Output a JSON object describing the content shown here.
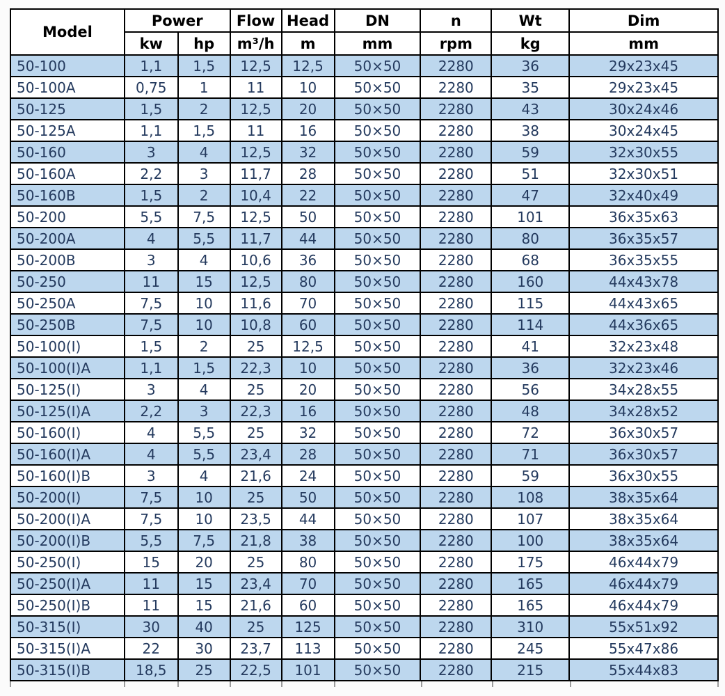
{
  "table": {
    "header": {
      "model": "Model",
      "power": "Power",
      "kw": "kw",
      "hp": "hp",
      "flow": "Flow",
      "flow_unit": "m³/h",
      "head": "Head",
      "head_unit": "m",
      "dn": "DN",
      "dn_unit": "mm",
      "n": "n",
      "n_unit": "rpm",
      "wt": "Wt",
      "wt_unit": "kg",
      "dim": "Dim",
      "dim_unit": "mm"
    },
    "column_keys": [
      "model",
      "kw",
      "hp",
      "flow",
      "head",
      "dn",
      "n",
      "wt",
      "dim"
    ],
    "rows": [
      [
        "50-100",
        "1,1",
        "1,5",
        "12,5",
        "12,5",
        "50×50",
        "2280",
        "36",
        "29x23x45"
      ],
      [
        "50-100A",
        "0,75",
        "1",
        "11",
        "10",
        "50×50",
        "2280",
        "35",
        "29x23x45"
      ],
      [
        "50-125",
        "1,5",
        "2",
        "12,5",
        "20",
        "50×50",
        "2280",
        "43",
        "30x24x46"
      ],
      [
        "50-125A",
        "1,1",
        "1,5",
        "11",
        "16",
        "50×50",
        "2280",
        "38",
        "30x24x45"
      ],
      [
        "50-160",
        "3",
        "4",
        "12,5",
        "32",
        "50×50",
        "2280",
        "59",
        "32x30x55"
      ],
      [
        "50-160A",
        "2,2",
        "3",
        "11,7",
        "28",
        "50×50",
        "2280",
        "51",
        "32x30x51"
      ],
      [
        "50-160B",
        "1,5",
        "2",
        "10,4",
        "22",
        "50×50",
        "2280",
        "47",
        "32x40x49"
      ],
      [
        "50-200",
        "5,5",
        "7,5",
        "12,5",
        "50",
        "50×50",
        "2280",
        "101",
        "36x35x63"
      ],
      [
        "50-200A",
        "4",
        "5,5",
        "11,7",
        "44",
        "50×50",
        "2280",
        "80",
        "36x35x57"
      ],
      [
        "50-200B",
        "3",
        "4",
        "10,6",
        "36",
        "50×50",
        "2280",
        "68",
        "36x35x55"
      ],
      [
        "50-250",
        "11",
        "15",
        "12,5",
        "80",
        "50×50",
        "2280",
        "160",
        "44x43x78"
      ],
      [
        "50-250A",
        "7,5",
        "10",
        "11,6",
        "70",
        "50×50",
        "2280",
        "115",
        "44x43x65"
      ],
      [
        "50-250B",
        "7,5",
        "10",
        "10,8",
        "60",
        "50×50",
        "2280",
        "114",
        "44x36x65"
      ],
      [
        "50-100(I)",
        "1,5",
        "2",
        "25",
        "12,5",
        "50×50",
        "2280",
        "41",
        "32x23x48"
      ],
      [
        "50-100(I)A",
        "1,1",
        "1,5",
        "22,3",
        "10",
        "50×50",
        "2280",
        "36",
        "32x23x46"
      ],
      [
        "50-125(I)",
        "3",
        "4",
        "25",
        "20",
        "50×50",
        "2280",
        "56",
        "34x28x55"
      ],
      [
        "50-125(I)A",
        "2,2",
        "3",
        "22,3",
        "16",
        "50×50",
        "2280",
        "48",
        "34x28x52"
      ],
      [
        "50-160(I)",
        "4",
        "5,5",
        "25",
        "32",
        "50×50",
        "2280",
        "72",
        "36x30x57"
      ],
      [
        "50-160(I)A",
        "4",
        "5,5",
        "23,4",
        "28",
        "50×50",
        "2280",
        "71",
        "36x30x57"
      ],
      [
        "50-160(I)B",
        "3",
        "4",
        "21,6",
        "24",
        "50×50",
        "2280",
        "59",
        "36x30x55"
      ],
      [
        "50-200(I)",
        "7,5",
        "10",
        "25",
        "50",
        "50×50",
        "2280",
        "108",
        "38x35x64"
      ],
      [
        "50-200(I)A",
        "7,5",
        "10",
        "23,5",
        "44",
        "50×50",
        "2280",
        "107",
        "38x35x64"
      ],
      [
        "50-200(I)B",
        "5,5",
        "7,5",
        "21,8",
        "38",
        "50×50",
        "2280",
        "100",
        "38x35x64"
      ],
      [
        "50-250(I)",
        "15",
        "20",
        "25",
        "80",
        "50×50",
        "2280",
        "175",
        "46x44x79"
      ],
      [
        "50-250(I)A",
        "11",
        "15",
        "23,4",
        "70",
        "50×50",
        "2280",
        "165",
        "46x44x79"
      ],
      [
        "50-250(I)B",
        "11",
        "15",
        "21,6",
        "60",
        "50×50",
        "2280",
        "165",
        "46x44x79"
      ],
      [
        "50-315(I)",
        "30",
        "40",
        "25",
        "125",
        "50×50",
        "2280",
        "310",
        "55x51x92"
      ],
      [
        "50-315(I)A",
        "22",
        "30",
        "23,7",
        "113",
        "50×50",
        "2280",
        "245",
        "55x47x86"
      ],
      [
        "50-315(I)B",
        "18,5",
        "25",
        "22,5",
        "101",
        "50×50",
        "2280",
        "215",
        "55x44x83"
      ]
    ]
  },
  "colors": {
    "stripe_blue": "#bdd7ee",
    "stripe_white": "#ffffff",
    "grid_border": "#000000",
    "data_text": "#243a5e",
    "header_text": "#000000"
  }
}
